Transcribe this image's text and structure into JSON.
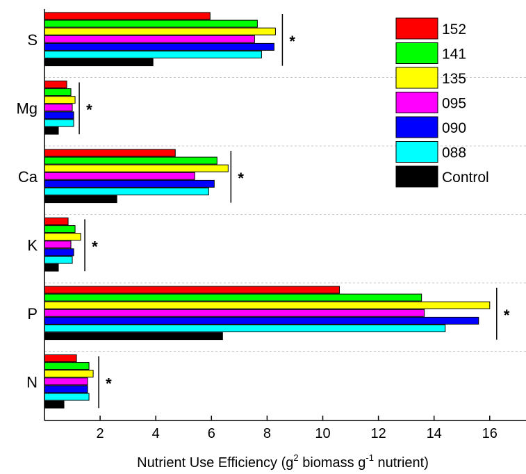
{
  "chart_data": {
    "type": "bar",
    "orientation": "horizontal",
    "categories": [
      "S",
      "Mg",
      "Ca",
      "K",
      "P",
      "N"
    ],
    "series": [
      {
        "name": "152",
        "color": "#ff0000",
        "values": [
          5.95,
          0.8,
          4.7,
          0.85,
          10.6,
          1.15
        ]
      },
      {
        "name": "141",
        "color": "#00ff00",
        "values": [
          7.65,
          0.95,
          6.2,
          1.1,
          13.55,
          1.6
        ]
      },
      {
        "name": "135",
        "color": "#ffff00",
        "values": [
          8.3,
          1.1,
          6.6,
          1.3,
          16.0,
          1.75
        ]
      },
      {
        "name": "095",
        "color": "#ff00ff",
        "values": [
          7.55,
          1.0,
          5.4,
          0.95,
          13.65,
          1.55
        ]
      },
      {
        "name": "090",
        "color": "#0000ff",
        "values": [
          8.25,
          1.05,
          6.1,
          1.05,
          15.6,
          1.55
        ]
      },
      {
        "name": "088",
        "color": "#00ffff",
        "values": [
          7.8,
          1.05,
          5.9,
          1.0,
          14.4,
          1.6
        ]
      },
      {
        "name": "Control",
        "color": "#000000",
        "values": [
          3.9,
          0.5,
          2.6,
          0.5,
          6.4,
          0.7
        ]
      }
    ],
    "xlabel_main": "Nutrient Use Efficiency (g",
    "xlabel_sup1": "2",
    "xlabel_mid": " biomass g",
    "xlabel_sup2": "-1",
    "xlabel_end": " nutrient)",
    "xlim": [
      0,
      17.3
    ],
    "xticks": [
      "2",
      "4",
      "6",
      "8",
      "10",
      "12",
      "14",
      "16"
    ],
    "xtick_values": [
      2,
      4,
      6,
      8,
      10,
      12,
      14,
      16
    ],
    "significance": [
      {
        "category": "S",
        "x": 8.55,
        "label": "*"
      },
      {
        "category": "Mg",
        "x": 1.25,
        "label": "*"
      },
      {
        "category": "Ca",
        "x": 6.7,
        "label": "*"
      },
      {
        "category": "K",
        "x": 1.45,
        "label": "*"
      },
      {
        "category": "P",
        "x": 16.25,
        "label": "*"
      },
      {
        "category": "N",
        "x": 1.95,
        "label": "*"
      }
    ],
    "grid": "horizontal dashed separators between categories",
    "legend_position": "top-right"
  }
}
